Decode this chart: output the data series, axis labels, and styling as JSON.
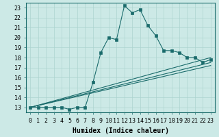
{
  "xlabel": "Humidex (Indice chaleur)",
  "background_color": "#cce9e6",
  "grid_color": "#add4d0",
  "line_color": "#1a6b6b",
  "lines": [
    {
      "x": [
        0,
        1,
        2,
        3,
        4,
        5,
        6,
        7,
        8,
        9,
        10,
        11,
        12,
        13,
        14,
        15,
        16,
        17,
        18,
        19,
        20,
        21,
        22,
        23
      ],
      "y": [
        13,
        13,
        13,
        13,
        13,
        12.8,
        13,
        13,
        15.5,
        18.5,
        20.0,
        19.8,
        23.2,
        22.5,
        22.8,
        21.2,
        20.2,
        18.7,
        18.7,
        18.5,
        18.0,
        18.0,
        17.5,
        17.8
      ],
      "marker": true
    },
    {
      "x": [
        0,
        23
      ],
      "y": [
        13,
        18.0
      ],
      "marker": false
    },
    {
      "x": [
        0,
        23
      ],
      "y": [
        13,
        17.5
      ],
      "marker": false
    },
    {
      "x": [
        0,
        23
      ],
      "y": [
        13,
        17.2
      ],
      "marker": false
    }
  ],
  "xlim": [
    -0.5,
    23.5
  ],
  "ylim": [
    12.5,
    23.5
  ],
  "xticks": [
    0,
    1,
    2,
    3,
    4,
    5,
    6,
    7,
    8,
    9,
    10,
    11,
    12,
    13,
    14,
    15,
    16,
    17,
    18,
    19,
    20,
    21,
    22,
    23
  ],
  "yticks": [
    13,
    14,
    15,
    16,
    17,
    18,
    19,
    20,
    21,
    22,
    23
  ],
  "marker_style": "s",
  "marker_size": 2.5,
  "line_width": 0.8,
  "font_family": "monospace",
  "font_size_label": 7,
  "font_size_tick": 6
}
